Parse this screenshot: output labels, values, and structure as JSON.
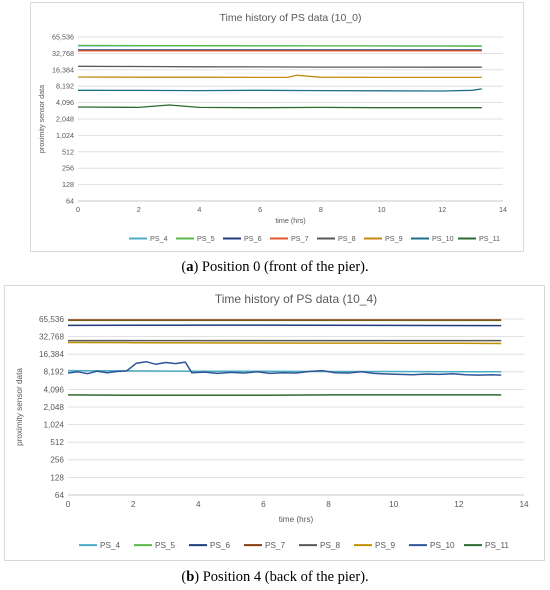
{
  "captions": [
    {
      "letter": "a",
      "text": "Position 0 (front of the pier)."
    },
    {
      "letter": "b",
      "text": "Position 4 (back of the pier)."
    }
  ],
  "chart_data": [
    {
      "type": "line",
      "title": "Time history of PS data (10_0)",
      "xlabel": "time (hrs)",
      "ylabel": "proximity sensor data",
      "y_scale": "log2",
      "xlim": [
        0,
        14
      ],
      "ylim": [
        64,
        65536
      ],
      "x_ticks": [
        "0",
        "2",
        "4",
        "6",
        "8",
        "10",
        "12",
        "14"
      ],
      "y_ticks": [
        "64",
        "128",
        "256",
        "512",
        "1,024",
        "2,048",
        "4,096",
        "8,192",
        "16,384",
        "32,768",
        "65,536"
      ],
      "grid": "horizontal",
      "legend_position": "bottom",
      "series": [
        {
          "name": "PS_4",
          "color": "#4bacc6",
          "x": [
            0,
            13.3
          ],
          "y": [
            45000,
            45000
          ]
        },
        {
          "name": "PS_5",
          "color": "#59b848",
          "x": [
            0,
            1,
            2,
            3,
            4,
            5,
            6,
            7,
            8,
            9,
            10,
            11,
            12,
            13.3
          ],
          "y": [
            46000,
            45800,
            45600,
            45500,
            45400,
            45300,
            45200,
            45100,
            45000,
            44900,
            44800,
            44700,
            44600,
            44500
          ]
        },
        {
          "name": "PS_6",
          "color": "#1f3d7a",
          "x": [
            0,
            13.3
          ],
          "y": [
            38000,
            38000
          ]
        },
        {
          "name": "PS_7",
          "color": "#e0552b",
          "x": [
            0,
            13.3
          ],
          "y": [
            36500,
            36500
          ]
        },
        {
          "name": "PS_8",
          "color": "#595959",
          "x": [
            0,
            2,
            4,
            6,
            8,
            10,
            12,
            13.3
          ],
          "y": [
            19000,
            18800,
            18600,
            18500,
            18400,
            18400,
            18300,
            18300
          ]
        },
        {
          "name": "PS_9",
          "color": "#c58a14",
          "x": [
            0,
            2,
            4,
            6,
            6.9,
            7.2,
            8,
            10,
            12,
            13.3
          ],
          "y": [
            12100,
            12000,
            12000,
            11900,
            11900,
            13000,
            12000,
            11900,
            11900,
            11900
          ]
        },
        {
          "name": "PS_10",
          "color": "#1f6f8b",
          "x": [
            0,
            2,
            4,
            6,
            8,
            10,
            12,
            13,
            13.3
          ],
          "y": [
            6900,
            6850,
            6800,
            6900,
            6800,
            6750,
            6700,
            6900,
            7300
          ]
        },
        {
          "name": "PS_11",
          "color": "#2d6a2f",
          "x": [
            0,
            2,
            3,
            4,
            6,
            8,
            10,
            12,
            13.3
          ],
          "y": [
            3400,
            3350,
            3700,
            3350,
            3300,
            3350,
            3300,
            3300,
            3300
          ]
        }
      ]
    },
    {
      "type": "line",
      "title": "Time history of PS data (10_4)",
      "xlabel": "time (hrs)",
      "ylabel": "proximity sensor data",
      "y_scale": "log2",
      "xlim": [
        0,
        14
      ],
      "ylim": [
        64,
        65536
      ],
      "x_ticks": [
        "0",
        "2",
        "4",
        "6",
        "8",
        "10",
        "12",
        "14"
      ],
      "y_ticks": [
        "64",
        "128",
        "256",
        "512",
        "1,024",
        "2,048",
        "4,096",
        "8,192",
        "16,384",
        "32,768",
        "65,536"
      ],
      "grid": "horizontal",
      "legend_position": "bottom",
      "series": [
        {
          "name": "PS_4",
          "color": "#4bacc6",
          "x": [
            0,
            2,
            4,
            6,
            8,
            10,
            12,
            13.3
          ],
          "y": [
            8600,
            8500,
            8400,
            8400,
            8300,
            8300,
            8200,
            8200
          ]
        },
        {
          "name": "PS_5",
          "color": "#59b848",
          "x": [
            0,
            13.3
          ],
          "y": [
            62000,
            62000
          ]
        },
        {
          "name": "PS_6",
          "color": "#1f3d7a",
          "x": [
            0,
            5.2,
            13.3
          ],
          "y": [
            51000,
            51500,
            50500
          ]
        },
        {
          "name": "PS_7",
          "color": "#843c0c",
          "x": [
            0,
            13.3
          ],
          "y": [
            63000,
            63000
          ]
        },
        {
          "name": "PS_8",
          "color": "#595959",
          "x": [
            0,
            13.3
          ],
          "y": [
            28000,
            28000
          ]
        },
        {
          "name": "PS_9",
          "color": "#bf9000",
          "x": [
            0,
            2,
            4,
            6,
            8,
            10,
            12,
            13.3
          ],
          "y": [
            26000,
            25800,
            25600,
            25500,
            25400,
            25300,
            25200,
            25000
          ]
        },
        {
          "name": "PS_10",
          "color": "#2f5597",
          "x": [
            0,
            0.3,
            0.6,
            0.9,
            1.2,
            1.5,
            1.8,
            2.1,
            2.4,
            2.7,
            3.0,
            3.3,
            3.6,
            3.8,
            4.2,
            4.6,
            5.0,
            5.4,
            5.8,
            6.2,
            6.6,
            7.0,
            7.4,
            7.8,
            8.2,
            8.6,
            9.0,
            9.4,
            9.8,
            10.2,
            10.6,
            11.0,
            11.4,
            11.8,
            12.2,
            12.6,
            13.0,
            13.3
          ],
          "y": [
            7800,
            8200,
            7600,
            8400,
            7900,
            8300,
            8500,
            11500,
            12200,
            11000,
            11800,
            11300,
            12000,
            7900,
            8100,
            7700,
            8000,
            7800,
            8200,
            7700,
            7900,
            7800,
            8300,
            8600,
            7900,
            7800,
            8200,
            7700,
            7500,
            7400,
            7300,
            7500,
            7400,
            7600,
            7300,
            7200,
            7300,
            7200
          ]
        },
        {
          "name": "PS_11",
          "color": "#2d6a2f",
          "x": [
            0,
            2,
            4,
            6,
            8,
            10,
            12,
            13.3
          ],
          "y": [
            3300,
            3250,
            3250,
            3250,
            3300,
            3300,
            3300,
            3300
          ]
        }
      ]
    }
  ]
}
